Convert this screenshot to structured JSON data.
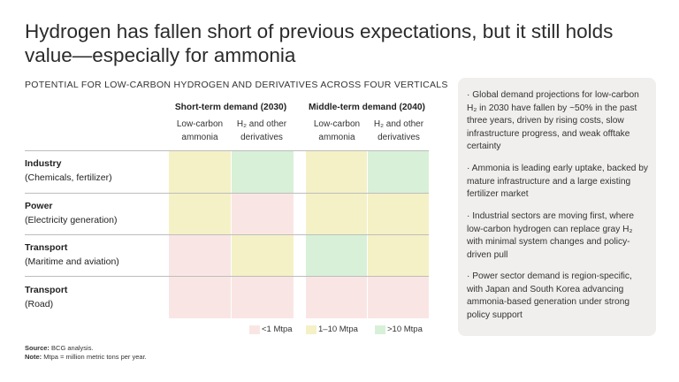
{
  "title": "Hydrogen has fallen short of previous expectations, but it still holds value—especially for ammonia",
  "subtitle": "POTENTIAL FOR LOW-CARBON HYDROGEN AND DERIVATIVES ACROSS FOUR VERTICALS",
  "groups": {
    "short": "Short-term demand (2030)",
    "mid": "Middle-term demand (2040)"
  },
  "columns": {
    "c1": "Low-carbon ammonia",
    "c2": "H₂ and other derivatives",
    "c3": "Low-carbon ammonia",
    "c4": "H₂ and other derivatives"
  },
  "rows": [
    {
      "name": "Industry",
      "detail": "(Chemicals, fertilizer)",
      "levels": [
        "1-10",
        ">10",
        "1-10",
        ">10"
      ]
    },
    {
      "name": "Power",
      "detail": "(Electricity generation)",
      "levels": [
        "1-10",
        "<1",
        "1-10",
        "1-10"
      ]
    },
    {
      "name": "Transport",
      "detail": "(Maritime and aviation)",
      "levels": [
        "<1",
        "1-10",
        ">10",
        "1-10"
      ]
    },
    {
      "name": "Transport",
      "detail": "(Road)",
      "levels": [
        "<1",
        "<1",
        "<1",
        "<1"
      ]
    }
  ],
  "legend": {
    "low": "<1 Mtpa",
    "mid": "1–10 Mtpa",
    "high": ">10 Mtpa"
  },
  "colors": {
    "low": "#f9e6e4",
    "mid": "#f5f1c6",
    "high": "#d8f0d8",
    "panel": "#f0efed"
  },
  "footnotes": {
    "source_label": "Source:",
    "source_text": " BCG analysis.",
    "note_label": "Note:",
    "note_text": " Mtpa = million metric tons per year."
  },
  "bullets": [
    "· Global demand projections for low-carbon H₂ in 2030 have fallen by ~50% in the past three years, driven by rising costs, slow infrastructure progress, and weak offtake certainty",
    "· Ammonia is leading early uptake, backed by mature infrastructure and a large existing fertilizer market",
    "· Industrial sectors are moving first, where low-carbon hydrogen can replace gray H₂ with minimal system changes and policy-driven pull",
    "· Power sector demand is region-specific, with Japan and South Korea advancing ammonia-based generation under strong policy support"
  ]
}
